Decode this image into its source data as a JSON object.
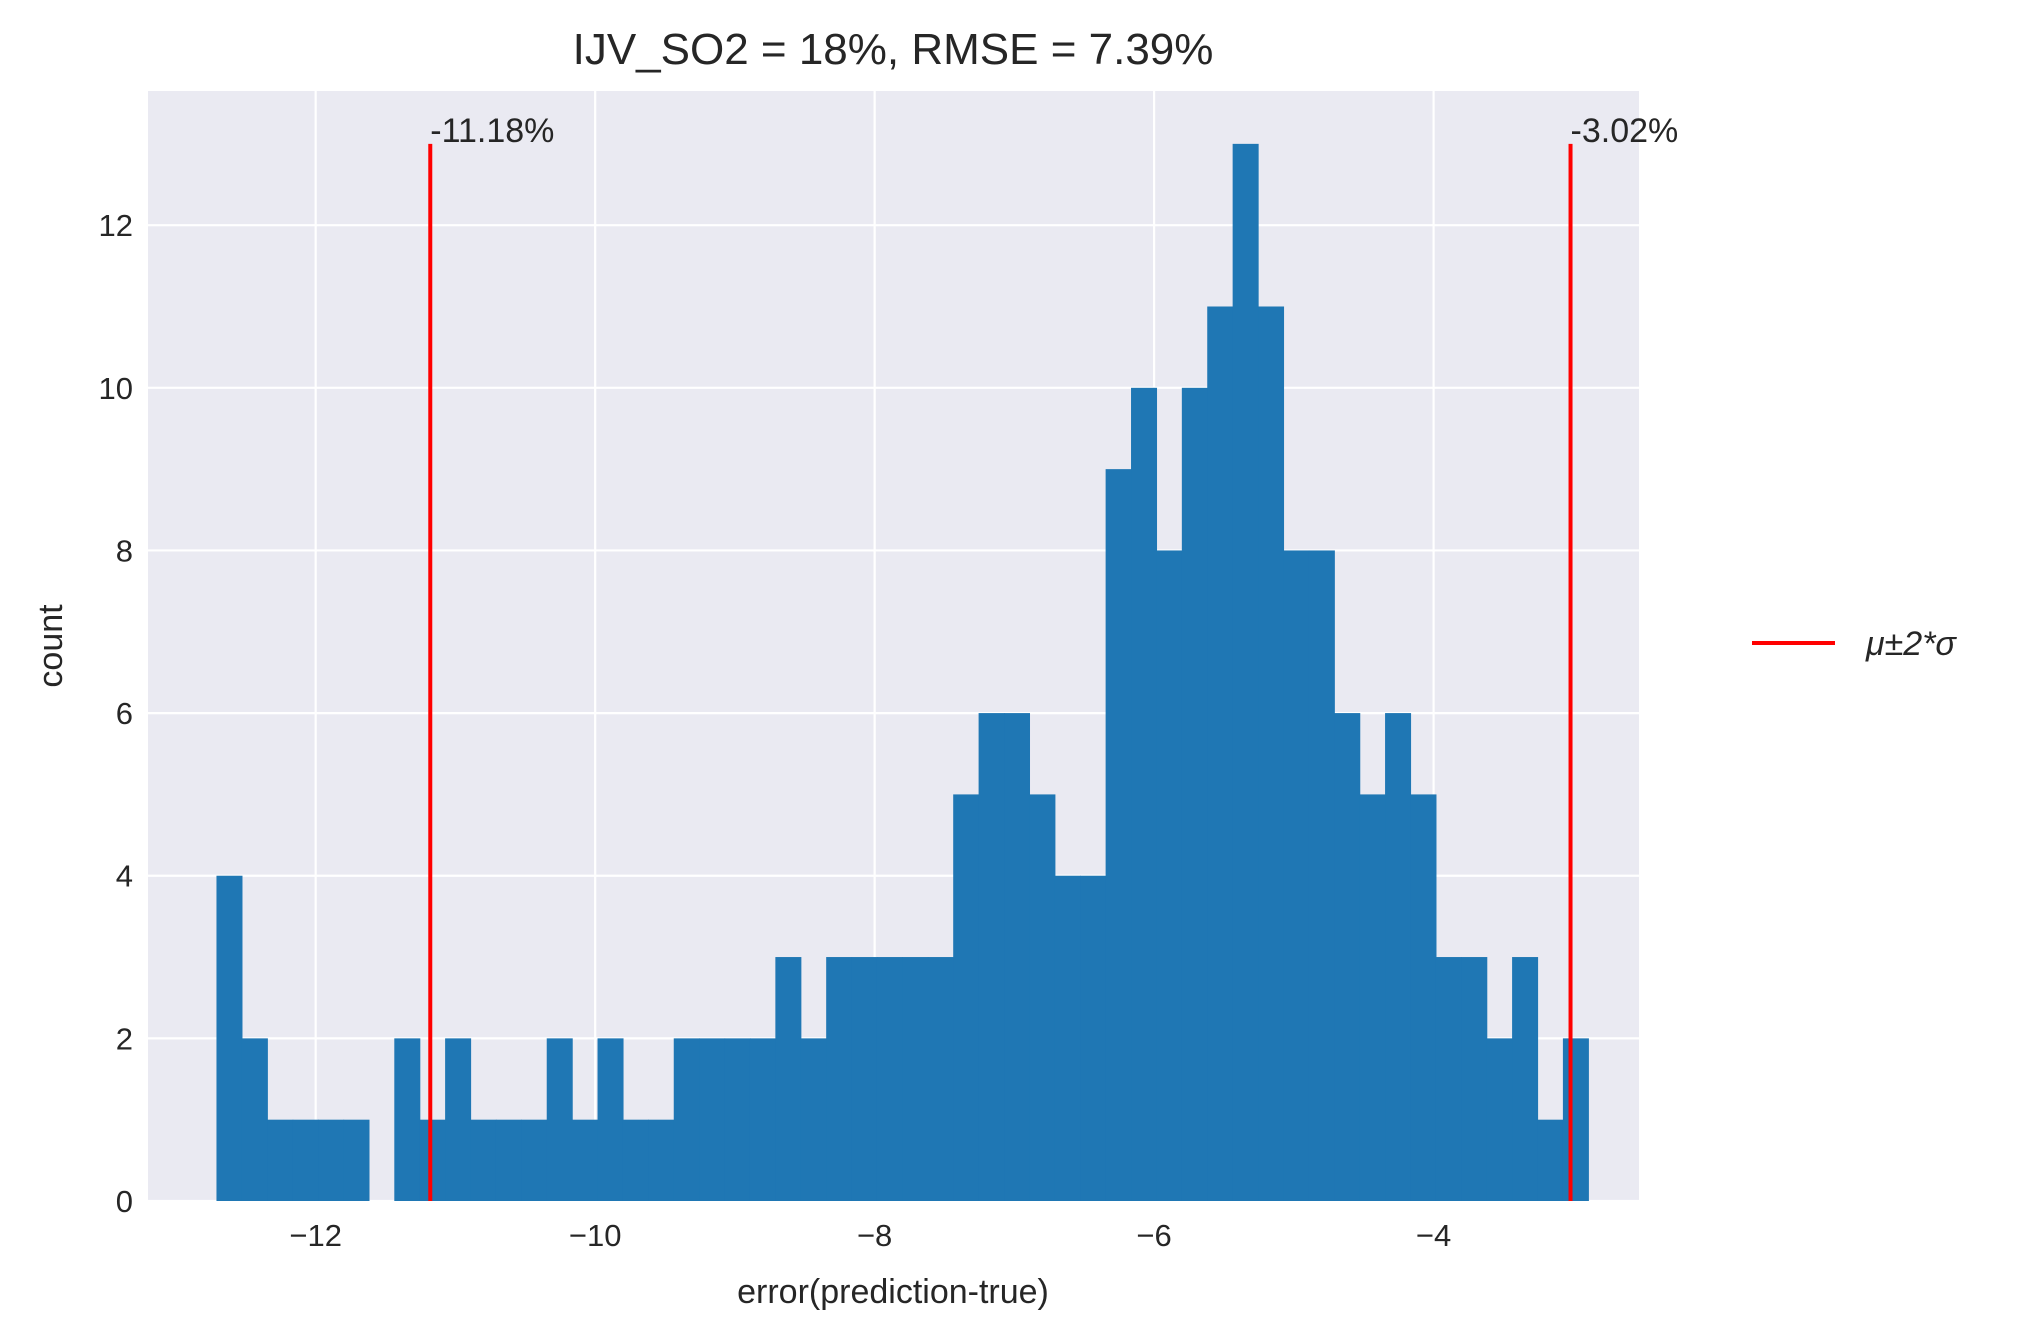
{
  "chart_data": {
    "type": "bar",
    "title": "IJV_SO2 = 18%, RMSE = 7.39%",
    "xlabel": "error(prediction-true)",
    "ylabel": "count",
    "xlim": [
      -13.2,
      -2.53
    ],
    "ylim": [
      0,
      13.65
    ],
    "xticks": [
      -12,
      -10,
      -8,
      -6,
      -4
    ],
    "xtick_labels": [
      "−12",
      "−10",
      "−8",
      "−6",
      "−4"
    ],
    "yticks": [
      0,
      2,
      4,
      6,
      8,
      10,
      12
    ],
    "ytick_labels": [
      "0",
      "2",
      "4",
      "6",
      "8",
      "10",
      "12"
    ],
    "grid": true,
    "histogram": {
      "bin_start": -12.71,
      "bin_width": 0.1818,
      "counts": [
        4,
        2,
        1,
        1,
        1,
        1,
        0,
        2,
        1,
        2,
        1,
        1,
        1,
        2,
        1,
        2,
        1,
        1,
        2,
        2,
        2,
        2,
        3,
        2,
        3,
        3,
        3,
        3,
        3,
        5,
        6,
        6,
        5,
        4,
        4,
        9,
        10,
        8,
        10,
        11,
        13,
        11,
        8,
        8,
        6,
        5,
        6,
        5,
        3,
        3,
        2,
        3,
        1,
        2
      ]
    },
    "color": "#1f77b4",
    "reference_lines": [
      {
        "x": -11.18,
        "label": "-11.18%",
        "color": "#ff0000"
      },
      {
        "x": -3.02,
        "label": "-3.02%",
        "color": "#ff0000"
      }
    ],
    "legend": {
      "label": "μ±2*σ",
      "placement": "center-right, outside plot"
    }
  }
}
